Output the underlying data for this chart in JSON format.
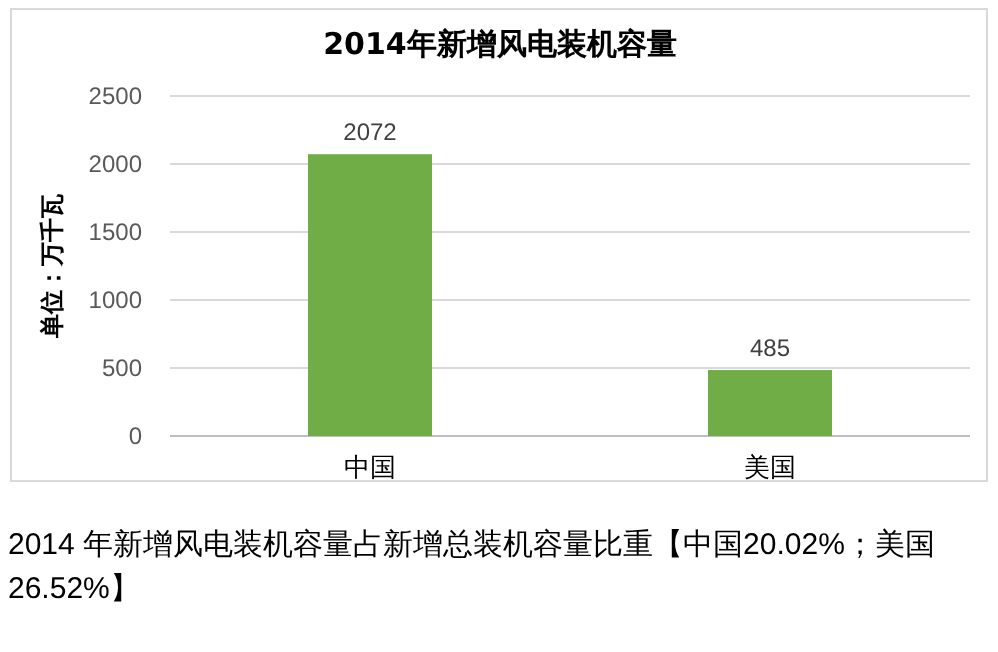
{
  "chart_data": {
    "type": "bar",
    "title": "2014年新增风电装机容量",
    "ylabel": "单位：万千瓦",
    "categories": [
      "中国",
      "美国"
    ],
    "values": [
      2072,
      485
    ],
    "color": "#70ad47",
    "ylim": [
      0,
      2500
    ],
    "yticks": [
      0,
      500,
      1000,
      1500,
      2000,
      2500
    ],
    "grid": "y",
    "data_labels": true,
    "annotations": [
      "2014 年新增风电装机容量占新增总装机容量比重【中国20.02%；美国26.52%】"
    ]
  }
}
